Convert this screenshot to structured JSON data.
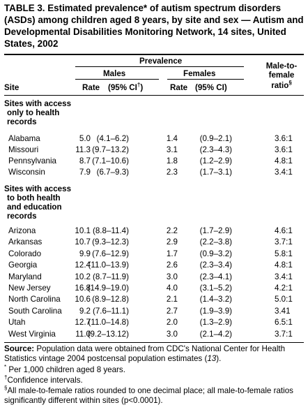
{
  "title": "TABLE 3. Estimated prevalence* of autism spectrum disorders (ASDs) among children aged 8 years, by site and sex — Autism and Developmental Disabilities Monitoring Network, 14 sites, United States, 2002",
  "header": {
    "prevalence": "Prevalence",
    "males": "Males",
    "females": "Females",
    "ratio_l1": "Male-to-",
    "ratio_l2": "female",
    "ratio_l3": "ratio",
    "ratio_mark": "§",
    "site": "Site",
    "rate": "Rate",
    "ci_m": "(95% CI",
    "ci_mark": "†",
    "ci_m_close": ")",
    "ci_f": "(95% CI)"
  },
  "section1": {
    "l1": "Sites with access",
    "l2": "only to health",
    "l3": "records",
    "rows": [
      {
        "site": "Alabama",
        "m_rate": "5.0",
        "m_ci": "(4.1–6.2)",
        "f_rate": "1.4",
        "f_ci": "(0.9–2.1)",
        "ratio": "3.6:1"
      },
      {
        "site": "Missouri",
        "m_rate": "11.3",
        "m_ci": "(9.7–13.2)",
        "f_rate": "3.1",
        "f_ci": "(2.3–4.3)",
        "ratio": "3.6:1"
      },
      {
        "site": "Pennsylvania",
        "m_rate": "8.7",
        "m_ci": "(7.1–10.6)",
        "f_rate": "1.8",
        "f_ci": "(1.2–2.9)",
        "ratio": "4.8:1"
      },
      {
        "site": "Wisconsin",
        "m_rate": "7.9",
        "m_ci": "(6.7–9.3)",
        "f_rate": "2.3",
        "f_ci": "(1.7–3.1)",
        "ratio": "3.4:1"
      }
    ]
  },
  "section2": {
    "l1": "Sites with access",
    "l2": "to both health",
    "l3": "and education",
    "l4": "records",
    "rows": [
      {
        "site": "Arizona",
        "m_rate": "10.1",
        "m_ci": "(8.8–11.4)",
        "f_rate": "2.2",
        "f_ci": "(1.7–2.9)",
        "ratio": "4.6:1"
      },
      {
        "site": "Arkansas",
        "m_rate": "10.7",
        "m_ci": "(9.3–12.3)",
        "f_rate": "2.9",
        "f_ci": "(2.2–3.8)",
        "ratio": "3.7:1"
      },
      {
        "site": "Colorado",
        "m_rate": "9.9",
        "m_ci": "(7.6–12.9)",
        "f_rate": "1.7",
        "f_ci": "(0.9–3.2)",
        "ratio": "5.8:1"
      },
      {
        "site": "Georgia",
        "m_rate": "12.4",
        "m_ci": "(11.0–13.9)",
        "f_rate": "2.6",
        "f_ci": "(2.3–3.4)",
        "ratio": "4.8:1"
      },
      {
        "site": "Maryland",
        "m_rate": "10.2",
        "m_ci": "(8.7–11.9)",
        "f_rate": "3.0",
        "f_ci": "(2.3–4.1)",
        "ratio": "3.4:1"
      },
      {
        "site": "New Jersey",
        "m_rate": "16.8",
        "m_ci": "(14.9–19.0)",
        "f_rate": "4.0",
        "f_ci": "(3.1–5.2)",
        "ratio": "4.2:1"
      },
      {
        "site": "North Carolina",
        "m_rate": "10.6",
        "m_ci": "(8.9–12.8)",
        "f_rate": "2.1",
        "f_ci": "(1.4–3.2)",
        "ratio": "5.0:1"
      },
      {
        "site": "South Carolina",
        "m_rate": "9.2",
        "m_ci": "(7.6–11.1)",
        "f_rate": "2.7",
        "f_ci": "(1.9–3.9)",
        "ratio": "3.41"
      },
      {
        "site": "Utah",
        "m_rate": "12.7",
        "m_ci": "(11.0–14.8)",
        "f_rate": "2.0",
        "f_ci": "(1.3–2.9)",
        "ratio": "6.5:1"
      },
      {
        "site": "West Virginia",
        "m_rate": "11.0",
        "m_ci": "(9.2–13.12)",
        "f_rate": "3.0",
        "f_ci": "(2.1–4.2)",
        "ratio": "3.7:1"
      }
    ]
  },
  "footnotes": {
    "source_label": "Source:",
    "source_a": "Population data were obtained from CDC's National Center for Health Statistics vintage 2004 postcensal population estimates (",
    "source_ref": "13",
    "source_b": ").",
    "star_mark": "*",
    "star": "Per 1,000 children aged 8 years.",
    "dagger_mark": "†",
    "dagger": "Confidence intervals.",
    "section_mark": "§",
    "section": "All male-to-female ratios rounded to one decimal place; all male-to-female ratios significantly different within sites (p<0.0001)."
  }
}
